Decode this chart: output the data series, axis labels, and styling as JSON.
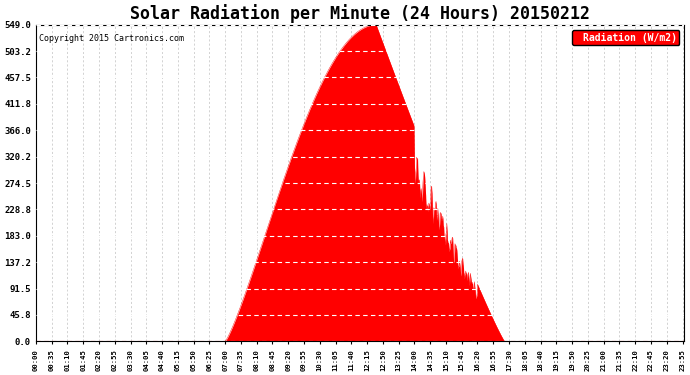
{
  "title": "Solar Radiation per Minute (24 Hours) 20150212",
  "copyright": "Copyright 2015 Cartronics.com",
  "legend_label": "Radiation (W/m2)",
  "yticks": [
    0.0,
    45.8,
    91.5,
    137.2,
    183.0,
    228.8,
    274.5,
    320.2,
    366.0,
    411.8,
    457.5,
    503.2,
    549.0
  ],
  "ymax": 549.0,
  "ymin": 0.0,
  "fill_color": "#FF0000",
  "line_color": "#FF0000",
  "dashed_line_color": "#FF0000",
  "grid_color": "#C0C0C0",
  "background_color": "#FFFFFF",
  "plot_bg_color": "#FFFFFF",
  "title_fontsize": 12,
  "legend_bg": "#FF0000",
  "legend_text_color": "#FFFFFF",
  "sun_rise_minute": 420,
  "sun_set_minute": 1040,
  "peak_minute": 755,
  "peak_value": 549.0,
  "tick_interval_minutes": 35
}
